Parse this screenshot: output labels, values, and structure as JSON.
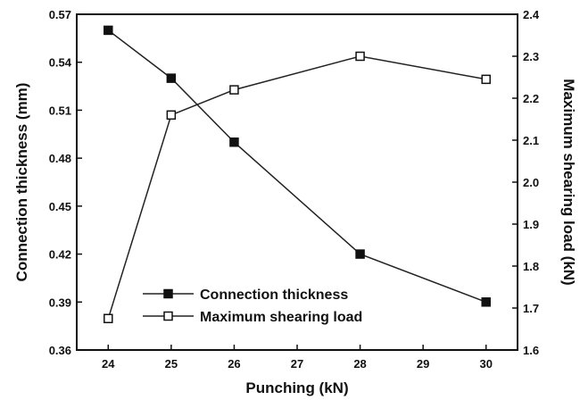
{
  "chart_data": {
    "type": "line",
    "title": "",
    "xlabel": "Punching (kN)",
    "ylabel_left": "Connection thickness (mm)",
    "ylabel_right": "Maximum shearing load (kN)",
    "xlim": [
      23.5,
      30.5
    ],
    "ylim_left": [
      0.36,
      0.57
    ],
    "ylim_right": [
      1.6,
      2.4
    ],
    "x_ticks": [
      "24",
      "25",
      "26",
      "27",
      "28",
      "29",
      "30"
    ],
    "y_left_ticks": [
      "0.36",
      "0.39",
      "0.42",
      "0.45",
      "0.48",
      "0.51",
      "0.54",
      "0.57"
    ],
    "y_right_ticks": [
      "1.6",
      "1.7",
      "1.8",
      "1.9",
      "2.0",
      "2.1",
      "2.2",
      "2.3",
      "2.4"
    ],
    "grid": false,
    "legend_position": "bottom-left",
    "series": [
      {
        "name": "Connection thickness",
        "axis": "left",
        "marker": "filled-square",
        "x": [
          24,
          25,
          26,
          28,
          30
        ],
        "y": [
          0.56,
          0.53,
          0.49,
          0.42,
          0.39
        ]
      },
      {
        "name": "Maximum shearing load",
        "axis": "right",
        "marker": "open-square",
        "x": [
          24,
          25,
          26,
          28,
          30
        ],
        "y": [
          1.675,
          2.16,
          2.22,
          2.3,
          2.245
        ]
      }
    ]
  }
}
